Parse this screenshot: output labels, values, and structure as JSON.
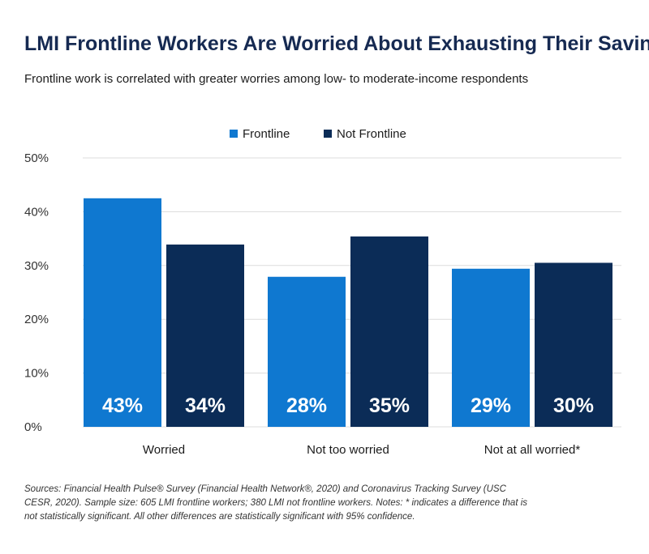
{
  "title": "LMI Frontline Workers Are Worried About Exhausting Their Savings",
  "subtitle": "Frontline work is correlated with greater worries among low- to moderate-income respondents",
  "notes": "Sources: Financial Health Pulse® Survey (Financial Health Network®, 2020) and Coronavirus Tracking Survey (USC CESR, 2020). Sample size: 605 LMI frontline workers; 380 LMI not frontline workers. Notes: * indicates a difference that is not statistically significant. All other differences are statistically significant with 95% confidence.",
  "colors": {
    "frontline": "#0f78d0",
    "not_frontline": "#0b2c57",
    "grid": "#dcdcdc",
    "axis_text": "#333333"
  },
  "chart_data": {
    "type": "bar",
    "categories": [
      "Worried",
      "Not too worried",
      "Not at all worried*"
    ],
    "series": [
      {
        "name": "Frontline",
        "values": [
          42.5,
          27.9,
          29.4
        ],
        "labels": [
          "43%",
          "28%",
          "29%"
        ]
      },
      {
        "name": "Not Frontline",
        "values": [
          33.9,
          35.4,
          30.5
        ],
        "labels": [
          "34%",
          "35%",
          "30%"
        ]
      }
    ],
    "yticks": [
      0,
      10,
      20,
      30,
      40,
      50
    ],
    "ytick_labels": [
      "0%",
      "10%",
      "20%",
      "30%",
      "40%",
      "50%"
    ],
    "ylim": [
      0,
      50
    ],
    "grid": true,
    "legend_position": "top-center"
  }
}
